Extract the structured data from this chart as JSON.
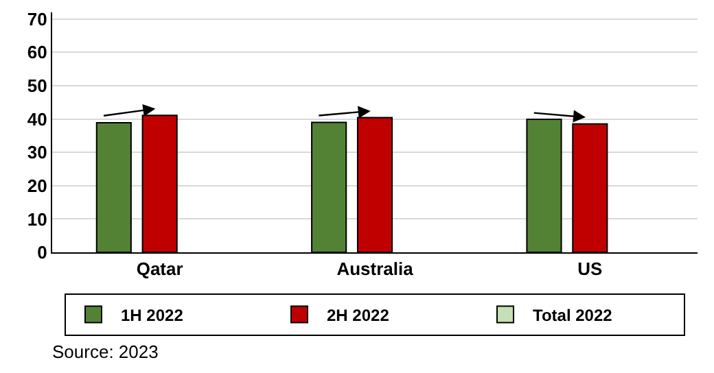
{
  "chart_data": {
    "type": "bar",
    "categories": [
      "Qatar",
      "Australia",
      "US"
    ],
    "series": [
      {
        "name": "1H 2022",
        "color": "#548235",
        "values": [
          38.9,
          39.0,
          39.9
        ]
      },
      {
        "name": "2H 2022",
        "color": "#c00000",
        "values": [
          41.1,
          40.4,
          38.5
        ]
      },
      {
        "name": "Total 2022",
        "color": "#c5e0b4",
        "values": [
          null,
          null,
          null
        ]
      }
    ],
    "ylim": [
      0,
      72
    ],
    "yticks": [
      0,
      10,
      20,
      30,
      40,
      50,
      60,
      70
    ],
    "grid": "y",
    "legend": "bottom",
    "annotations": [
      "Source: 2023"
    ]
  }
}
